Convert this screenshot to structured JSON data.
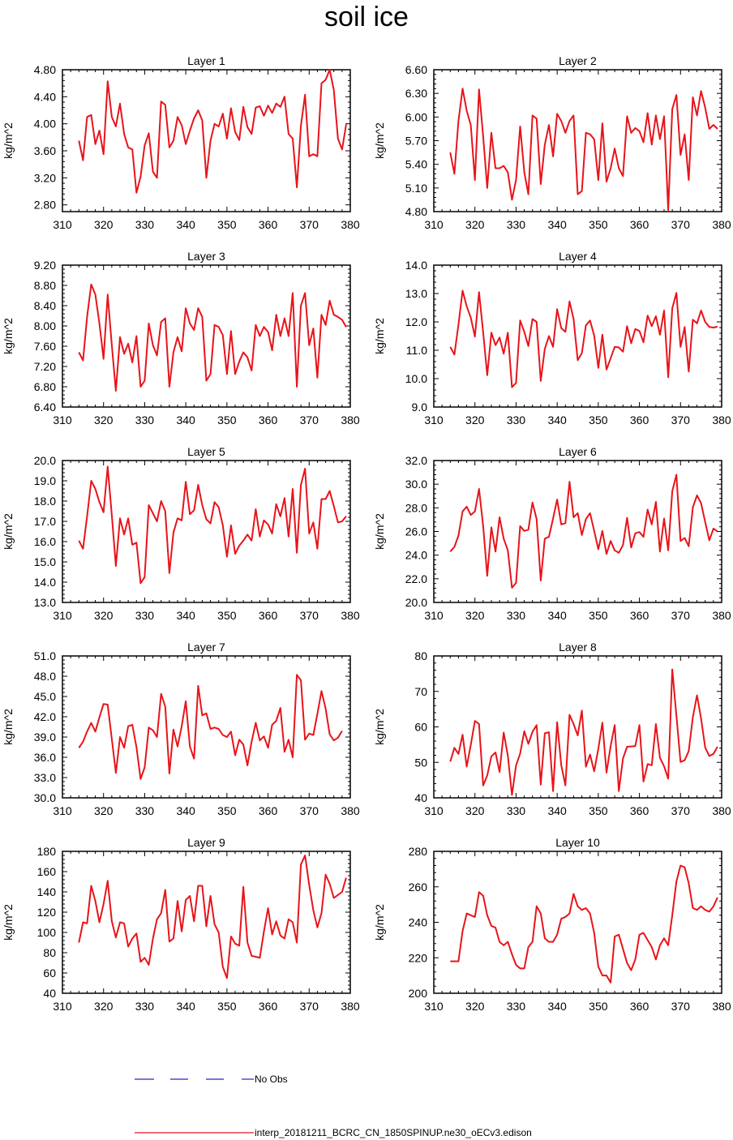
{
  "title": "soil ice",
  "ylabel": "kg/m^2",
  "colors": {
    "model": "#e8141a",
    "obs": "#2424c8"
  },
  "legend": {
    "obs_label": "No Obs",
    "model_label": "interp_20181211_BCRC_CN_1850SPINUP.ne30_oECv3.edison"
  },
  "chart_data": [
    {
      "type": "line",
      "title": "Layer 1",
      "ylabel": "kg/m^2",
      "xlim": [
        310,
        380
      ],
      "ylim": [
        2.7,
        4.8
      ],
      "xticks": [
        "310",
        "320",
        "330",
        "340",
        "350",
        "360",
        "370",
        "380"
      ],
      "yticks": [
        "2.80",
        "3.20",
        "3.60",
        "4.00",
        "4.40",
        "4.80"
      ],
      "x_start": 314,
      "values": [
        3.75,
        3.46,
        4.1,
        4.13,
        3.7,
        3.9,
        3.55,
        4.63,
        4.1,
        3.96,
        4.3,
        3.85,
        3.65,
        3.62,
        2.98,
        3.22,
        3.68,
        3.86,
        3.29,
        3.2,
        4.33,
        4.28,
        3.65,
        3.75,
        4.1,
        3.98,
        3.7,
        3.9,
        4.08,
        4.2,
        4.05,
        3.2,
        3.75,
        4.0,
        3.96,
        4.15,
        3.78,
        4.23,
        3.88,
        3.76,
        4.25,
        3.95,
        3.85,
        4.24,
        4.26,
        4.12,
        4.27,
        4.16,
        4.3,
        4.25,
        4.4,
        3.85,
        3.78,
        3.06,
        3.97,
        4.43,
        3.52,
        3.55,
        3.52,
        4.6,
        4.65,
        4.8,
        4.5,
        3.78,
        3.62,
        3.99
      ]
    },
    {
      "type": "line",
      "title": "Layer 2",
      "ylabel": "kg/m^2",
      "xlim": [
        310,
        380
      ],
      "ylim": [
        4.8,
        6.6
      ],
      "xticks": [
        "310",
        "320",
        "330",
        "340",
        "350",
        "360",
        "370",
        "380"
      ],
      "yticks": [
        "4.80",
        "5.10",
        "5.40",
        "5.70",
        "6.00",
        "6.30",
        "6.60"
      ],
      "x_start": 314,
      "values": [
        5.55,
        5.28,
        5.95,
        6.36,
        6.08,
        5.9,
        5.2,
        6.35,
        5.75,
        5.1,
        5.8,
        5.35,
        5.35,
        5.38,
        5.3,
        4.95,
        5.2,
        5.88,
        5.3,
        5.02,
        6.02,
        5.98,
        5.15,
        5.65,
        5.9,
        5.5,
        6.04,
        5.95,
        5.8,
        5.95,
        6.02,
        5.02,
        5.06,
        5.8,
        5.78,
        5.72,
        5.2,
        5.92,
        5.18,
        5.35,
        5.6,
        5.35,
        5.25,
        6.01,
        5.8,
        5.86,
        5.82,
        5.68,
        6.05,
        5.65,
        6.02,
        5.72,
        6.01,
        4.82,
        6.1,
        6.28,
        5.52,
        5.78,
        5.2,
        6.25,
        6.02,
        6.33,
        6.12,
        5.85,
        5.9,
        5.85
      ]
    },
    {
      "type": "line",
      "title": "Layer 3",
      "ylabel": "kg/m^2",
      "xlim": [
        310,
        380
      ],
      "ylim": [
        6.4,
        9.2
      ],
      "xticks": [
        "310",
        "320",
        "330",
        "340",
        "350",
        "360",
        "370",
        "380"
      ],
      "yticks": [
        "6.40",
        "6.80",
        "7.20",
        "7.60",
        "8.00",
        "8.40",
        "8.80",
        "9.20"
      ],
      "x_start": 314,
      "values": [
        7.48,
        7.32,
        8.18,
        8.82,
        8.62,
        8.05,
        7.35,
        8.62,
        7.62,
        6.72,
        7.78,
        7.45,
        7.65,
        7.28,
        7.8,
        6.8,
        6.92,
        8.05,
        7.62,
        7.42,
        8.08,
        8.15,
        6.8,
        7.48,
        7.78,
        7.5,
        8.35,
        8.05,
        7.92,
        8.35,
        8.18,
        6.92,
        7.05,
        8.02,
        7.98,
        7.82,
        7.05,
        7.9,
        7.05,
        7.3,
        7.48,
        7.38,
        7.12,
        8.02,
        7.8,
        7.98,
        7.88,
        7.52,
        8.22,
        7.8,
        8.15,
        7.8,
        8.65,
        6.8,
        8.4,
        8.65,
        7.62,
        7.95,
        6.98,
        8.22,
        8.02,
        8.5,
        8.22,
        8.18,
        8.12,
        7.98
      ]
    },
    {
      "type": "line",
      "title": "Layer 4",
      "ylabel": "kg/m^2",
      "xlim": [
        310,
        380
      ],
      "ylim": [
        9.0,
        14.0
      ],
      "xticks": [
        "310",
        "320",
        "330",
        "340",
        "350",
        "360",
        "370",
        "380"
      ],
      "yticks": [
        "9.0",
        "10.0",
        "11.0",
        "12.0",
        "13.0",
        "14.0"
      ],
      "x_start": 314,
      "values": [
        11.12,
        10.85,
        11.9,
        13.1,
        12.55,
        12.15,
        11.48,
        13.05,
        11.62,
        10.12,
        11.62,
        11.18,
        11.45,
        10.88,
        11.62,
        9.7,
        9.85,
        12.05,
        11.65,
        11.15,
        12.1,
        12.0,
        9.92,
        11.05,
        11.5,
        11.12,
        12.45,
        11.78,
        11.65,
        12.72,
        12.1,
        10.65,
        10.9,
        11.88,
        12.05,
        11.52,
        10.38,
        11.55,
        10.32,
        10.72,
        11.12,
        11.1,
        10.95,
        11.85,
        11.25,
        11.75,
        11.68,
        11.28,
        12.22,
        11.85,
        12.2,
        11.55,
        12.4,
        10.05,
        12.48,
        13.02,
        11.12,
        11.82,
        10.25,
        12.08,
        11.95,
        12.4,
        12.0,
        11.82,
        11.8,
        11.83
      ]
    },
    {
      "type": "line",
      "title": "Layer 5",
      "ylabel": "kg/m^2",
      "xlim": [
        310,
        380
      ],
      "ylim": [
        13.0,
        20.0
      ],
      "xticks": [
        "310",
        "320",
        "330",
        "340",
        "350",
        "360",
        "370",
        "380"
      ],
      "yticks": [
        "13.0",
        "14.0",
        "15.0",
        "16.0",
        "17.0",
        "18.0",
        "19.0",
        "20.0"
      ],
      "x_start": 314,
      "values": [
        16.05,
        15.65,
        17.25,
        19.0,
        18.6,
        17.95,
        17.45,
        19.7,
        17.3,
        14.8,
        17.15,
        16.35,
        17.15,
        15.85,
        15.95,
        13.95,
        14.25,
        17.8,
        17.4,
        17.0,
        18.0,
        17.5,
        14.45,
        16.45,
        17.15,
        17.05,
        18.95,
        17.35,
        17.55,
        18.8,
        17.8,
        17.1,
        16.9,
        17.95,
        17.7,
        16.8,
        15.25,
        16.8,
        15.4,
        15.8,
        16.05,
        16.35,
        16.05,
        17.6,
        16.25,
        17.05,
        16.85,
        16.4,
        17.85,
        17.25,
        18.15,
        16.25,
        18.6,
        15.45,
        18.8,
        19.6,
        16.4,
        16.95,
        15.65,
        18.1,
        18.1,
        18.5,
        17.75,
        16.95,
        17.0,
        17.25
      ]
    },
    {
      "type": "line",
      "title": "Layer 6",
      "ylabel": "kg/m^2",
      "xlim": [
        310,
        380
      ],
      "ylim": [
        20.0,
        32.0
      ],
      "xticks": [
        "310",
        "320",
        "330",
        "340",
        "350",
        "360",
        "370",
        "380"
      ],
      "yticks": [
        "20.0",
        "22.0",
        "24.0",
        "26.0",
        "28.0",
        "30.0",
        "32.0"
      ],
      "x_start": 314,
      "values": [
        24.3,
        24.7,
        25.65,
        27.7,
        28.1,
        27.4,
        27.7,
        29.6,
        26.45,
        22.25,
        26.35,
        24.3,
        27.2,
        25.4,
        24.4,
        21.25,
        21.65,
        26.45,
        26.05,
        26.15,
        28.45,
        27.05,
        21.85,
        25.4,
        25.55,
        27.1,
        28.7,
        26.6,
        26.7,
        30.2,
        27.2,
        27.55,
        25.7,
        27.05,
        27.55,
        26.05,
        24.5,
        26.05,
        24.1,
        25.2,
        24.4,
        24.2,
        24.85,
        27.15,
        24.65,
        25.85,
        25.95,
        25.55,
        27.85,
        26.6,
        28.5,
        24.3,
        27.1,
        24.4,
        29.4,
        30.8,
        25.2,
        25.45,
        24.75,
        28.05,
        29.05,
        28.4,
        26.8,
        25.25,
        26.25,
        26.0
      ]
    },
    {
      "type": "line",
      "title": "Layer 7",
      "ylabel": "kg/m^2",
      "xlim": [
        310,
        380
      ],
      "ylim": [
        30.0,
        51.0
      ],
      "xticks": [
        "310",
        "320",
        "330",
        "340",
        "350",
        "360",
        "370",
        "380"
      ],
      "yticks": [
        "30.0",
        "33.0",
        "36.0",
        "39.0",
        "42.0",
        "45.0",
        "48.0",
        "51.0"
      ],
      "x_start": 314,
      "values": [
        37.4,
        38.3,
        39.8,
        41.1,
        39.8,
        41.9,
        43.9,
        43.8,
        38.7,
        33.7,
        39.0,
        37.4,
        40.6,
        40.8,
        37.5,
        32.8,
        34.5,
        40.4,
        40.0,
        39.0,
        45.4,
        43.5,
        33.6,
        40.1,
        37.6,
        40.6,
        44.3,
        37.6,
        35.8,
        46.6,
        42.2,
        42.5,
        40.2,
        40.4,
        40.2,
        39.3,
        39.0,
        39.8,
        36.3,
        38.6,
        37.9,
        34.8,
        38.3,
        41.1,
        38.5,
        39.1,
        37.4,
        40.8,
        41.4,
        43.3,
        36.8,
        38.6,
        36.0,
        48.2,
        47.4,
        38.6,
        39.5,
        39.3,
        42.4,
        45.8,
        43.2,
        39.4,
        38.5,
        38.9,
        39.9
      ]
    },
    {
      "type": "line",
      "title": "Layer 8",
      "ylabel": "kg/m^2",
      "xlim": [
        310,
        380
      ],
      "ylim": [
        40,
        80
      ],
      "xticks": [
        "310",
        "320",
        "330",
        "340",
        "350",
        "360",
        "370",
        "380"
      ],
      "yticks": [
        "40",
        "50",
        "60",
        "70",
        "80"
      ],
      "x_start": 314,
      "values": [
        50.2,
        54.1,
        52.4,
        57.8,
        48.8,
        54.9,
        61.7,
        60.8,
        43.5,
        46.3,
        51.7,
        52.8,
        47.3,
        58.4,
        51.9,
        40.8,
        49.1,
        52.5,
        58.8,
        55.2,
        58.6,
        60.5,
        43.7,
        58.2,
        58.5,
        41.9,
        61.3,
        49.2,
        43.5,
        63.4,
        60.8,
        57.6,
        64.6,
        48.8,
        52.2,
        47.5,
        53.8,
        61.2,
        47.1,
        54.6,
        60.5,
        41.9,
        51.1,
        54.4,
        54.5,
        54.6,
        60.5,
        44.6,
        49.5,
        49.2,
        60.8,
        51.3,
        48.9,
        45.4,
        76.2,
        63.2,
        50.1,
        50.6,
        53.2,
        62.8,
        68.9,
        62.4,
        54.2,
        51.8,
        52.4,
        54.4
      ]
    },
    {
      "type": "line",
      "title": "Layer 9",
      "ylabel": "kg/m^2",
      "xlim": [
        310,
        380
      ],
      "ylim": [
        40,
        180
      ],
      "xticks": [
        "310",
        "320",
        "330",
        "340",
        "350",
        "360",
        "370",
        "380"
      ],
      "yticks": [
        "40",
        "60",
        "80",
        "100",
        "120",
        "140",
        "160",
        "180"
      ],
      "x_start": 314,
      "values": [
        90,
        110,
        109,
        146,
        131,
        110,
        128,
        151,
        111,
        95,
        110,
        109,
        86,
        94,
        99,
        71,
        75,
        68,
        94,
        113,
        119,
        142,
        91,
        94,
        131,
        101,
        132,
        136,
        111,
        146,
        146,
        106,
        136,
        108,
        100,
        66,
        55,
        96,
        89,
        87,
        145,
        90,
        77,
        76,
        75,
        101,
        124,
        98,
        111,
        97,
        94,
        113,
        110,
        90,
        167,
        176,
        147,
        122,
        105,
        119,
        157,
        148,
        134,
        137,
        140,
        154
      ]
    },
    {
      "type": "line",
      "title": "Layer 10",
      "ylabel": "kg/m^2",
      "xlim": [
        310,
        380
      ],
      "ylim": [
        200,
        280
      ],
      "xticks": [
        "310",
        "320",
        "330",
        "340",
        "350",
        "360",
        "370",
        "380"
      ],
      "yticks": [
        "200",
        "220",
        "240",
        "260",
        "280"
      ],
      "x_start": 314,
      "values": [
        218,
        218,
        218,
        235,
        245,
        244,
        243,
        257,
        255,
        244,
        238,
        237,
        229,
        227,
        229,
        222,
        216,
        214,
        214,
        226,
        229,
        249,
        245,
        231,
        229,
        229,
        233,
        242,
        243,
        245,
        256,
        249,
        247,
        248,
        245,
        234,
        215,
        210,
        210,
        206,
        232,
        233,
        225,
        217,
        213,
        219,
        233,
        234,
        230,
        226,
        219,
        227,
        231,
        227,
        244,
        263,
        272,
        271,
        262,
        248,
        247,
        249,
        247,
        246,
        249,
        254
      ]
    }
  ]
}
